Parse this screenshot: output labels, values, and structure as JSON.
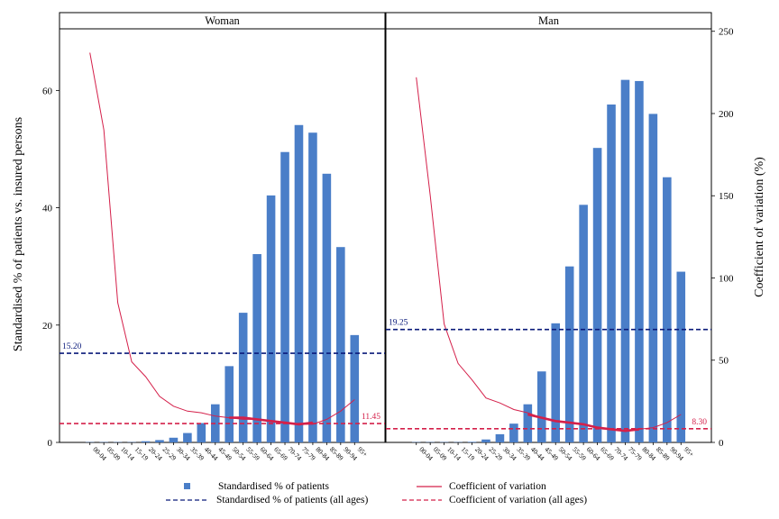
{
  "chart_data": {
    "type": "bar",
    "categories": [
      "00-04",
      "05-09",
      "10-14",
      "15-19",
      "20-24",
      "25-29",
      "30-34",
      "35-39",
      "40-44",
      "45-49",
      "50-54",
      "55-59",
      "60-64",
      "65-69",
      "70-74",
      "75-79",
      "80-84",
      "85-89",
      "90-94",
      "95+"
    ],
    "ylabel_left": "Standardised % of patients vs. insured persons",
    "ylabel_right": "Coefficient of variation (%)",
    "ylim_left": [
      0,
      70.5
    ],
    "ylim_right": [
      0,
      251.5
    ],
    "yticks_left": [
      0,
      20,
      40,
      60
    ],
    "yticks_right": [
      0,
      50,
      100,
      150,
      200,
      250
    ],
    "grid": false,
    "legend_position": "bottom",
    "legend": {
      "bars": "Standardised % of patients",
      "cv": "Coefficient of variation",
      "bars_all": "Standardised % of patients (all ages)",
      "cv_all": "Coefficient of variation (all ages)"
    },
    "colors": {
      "bars": "#4a7ec8",
      "cv": "#d4204a",
      "bars_all": "#0a1a7a",
      "cv_all": "#d4204a"
    },
    "panels": [
      {
        "title": "Woman",
        "bars": [
          0.05,
          0.05,
          0.05,
          0.05,
          0.2,
          0.4,
          0.8,
          1.6,
          3.3,
          6.5,
          13.0,
          22.1,
          32.1,
          42.1,
          49.5,
          54.1,
          52.8,
          45.8,
          33.3,
          18.3
        ],
        "cv": [
          237,
          190,
          85,
          49,
          40,
          28,
          22,
          19,
          18,
          16,
          15,
          14,
          14,
          13,
          12,
          11,
          11,
          14,
          19,
          26
        ],
        "cv_smooth": [
          null,
          null,
          null,
          null,
          null,
          null,
          null,
          null,
          null,
          null,
          15,
          15,
          14,
          13,
          12,
          11,
          12,
          null,
          null,
          null
        ],
        "all_ages_bars": 15.2,
        "all_ages_cv": 11.45,
        "label_bars_all": "15.20",
        "label_cv_all": "11.45"
      },
      {
        "title": "Man",
        "bars": [
          0.05,
          0.05,
          0.05,
          0.05,
          0.1,
          0.5,
          1.4,
          3.2,
          6.5,
          12.1,
          20.3,
          30.0,
          40.5,
          50.2,
          57.6,
          61.8,
          61.6,
          56.0,
          45.2,
          29.1
        ],
        "cv": [
          222,
          150,
          72,
          48,
          38,
          27,
          24,
          20,
          18,
          15,
          13,
          12,
          11,
          9,
          8,
          7,
          8,
          9,
          12,
          17
        ],
        "cv_smooth": [
          null,
          null,
          null,
          null,
          null,
          null,
          null,
          null,
          17,
          15,
          13,
          12,
          11,
          9,
          8,
          7,
          8,
          null,
          null,
          null
        ],
        "all_ages_bars": 19.25,
        "all_ages_cv": 8.3,
        "label_bars_all": "19.25",
        "label_cv_all": "8.30"
      }
    ]
  }
}
